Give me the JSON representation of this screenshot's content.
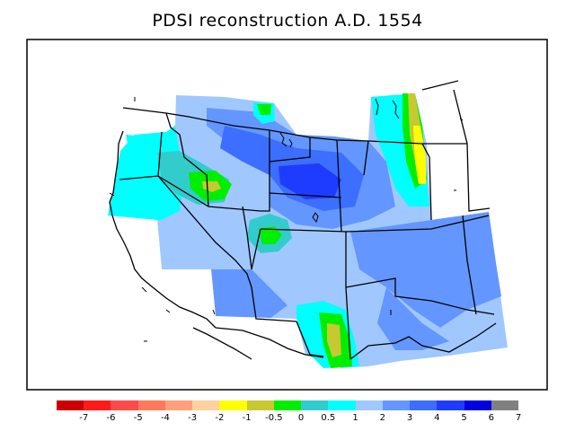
{
  "title": "PDSI reconstruction A.D. 1554",
  "legend": {
    "colors": [
      "#cc0000",
      "#ff1a1a",
      "#ff4a4a",
      "#ff7a5a",
      "#ffa07a",
      "#ffd0a0",
      "#ffff00",
      "#c8c832",
      "#00ee00",
      "#33cccc",
      "#00ffff",
      "#a0c8ff",
      "#6496ff",
      "#3c6eff",
      "#1e3cff",
      "#0000e0",
      "#808080"
    ],
    "labels": [
      "-7",
      "-6",
      "-5",
      "-4",
      "-3",
      "-2",
      "-1",
      "-0.5",
      "0",
      "0.5",
      "1",
      "2",
      "3",
      "4",
      "5",
      "6",
      "7"
    ]
  }
}
